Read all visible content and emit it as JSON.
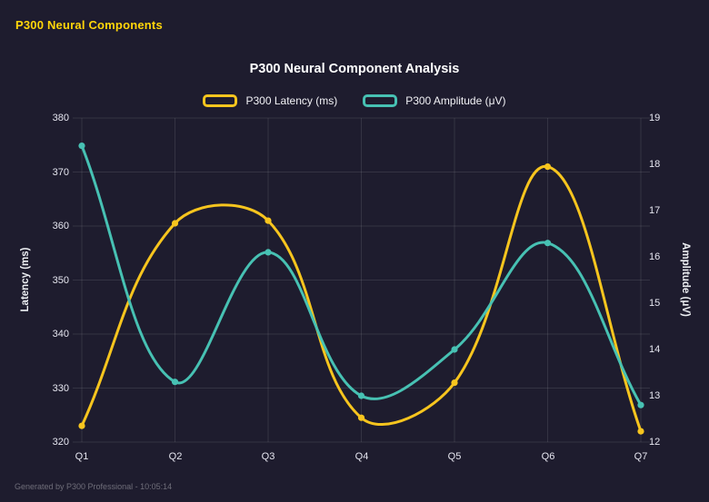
{
  "header": {
    "title": "P300 Neural Components"
  },
  "footer": {
    "text": "Generated by P300 Professional - 10:05:14"
  },
  "colors": {
    "background": "#1e1c2e",
    "grid": "rgba(255,255,255,0.10)",
    "latency": "#f7c51e",
    "amplitude": "#47c1b3",
    "header_text": "#ffd60a"
  },
  "chart_data": {
    "type": "line",
    "title": "P300 Neural Component Analysis",
    "categories": [
      "Q1",
      "Q2",
      "Q3",
      "Q4",
      "Q5",
      "Q6",
      "Q7"
    ],
    "series": [
      {
        "name": "P300 Latency (ms)",
        "axis": "left",
        "color": "#f7c51e",
        "values": [
          323,
          360.5,
          361,
          324.5,
          331,
          371,
          322
        ]
      },
      {
        "name": "P300 Amplitude (μV)",
        "axis": "right",
        "color": "#47c1b3",
        "values": [
          18.4,
          13.3,
          16.1,
          13.0,
          14.0,
          16.3,
          12.8
        ]
      }
    ],
    "left_axis": {
      "label": "Latency (ms)",
      "min": 320,
      "max": 380,
      "step": 10
    },
    "right_axis": {
      "label": "Amplitude (μV)",
      "min": 12,
      "max": 19,
      "step": 1
    },
    "grid": true,
    "legend_position": "top",
    "line_style": "smooth"
  }
}
